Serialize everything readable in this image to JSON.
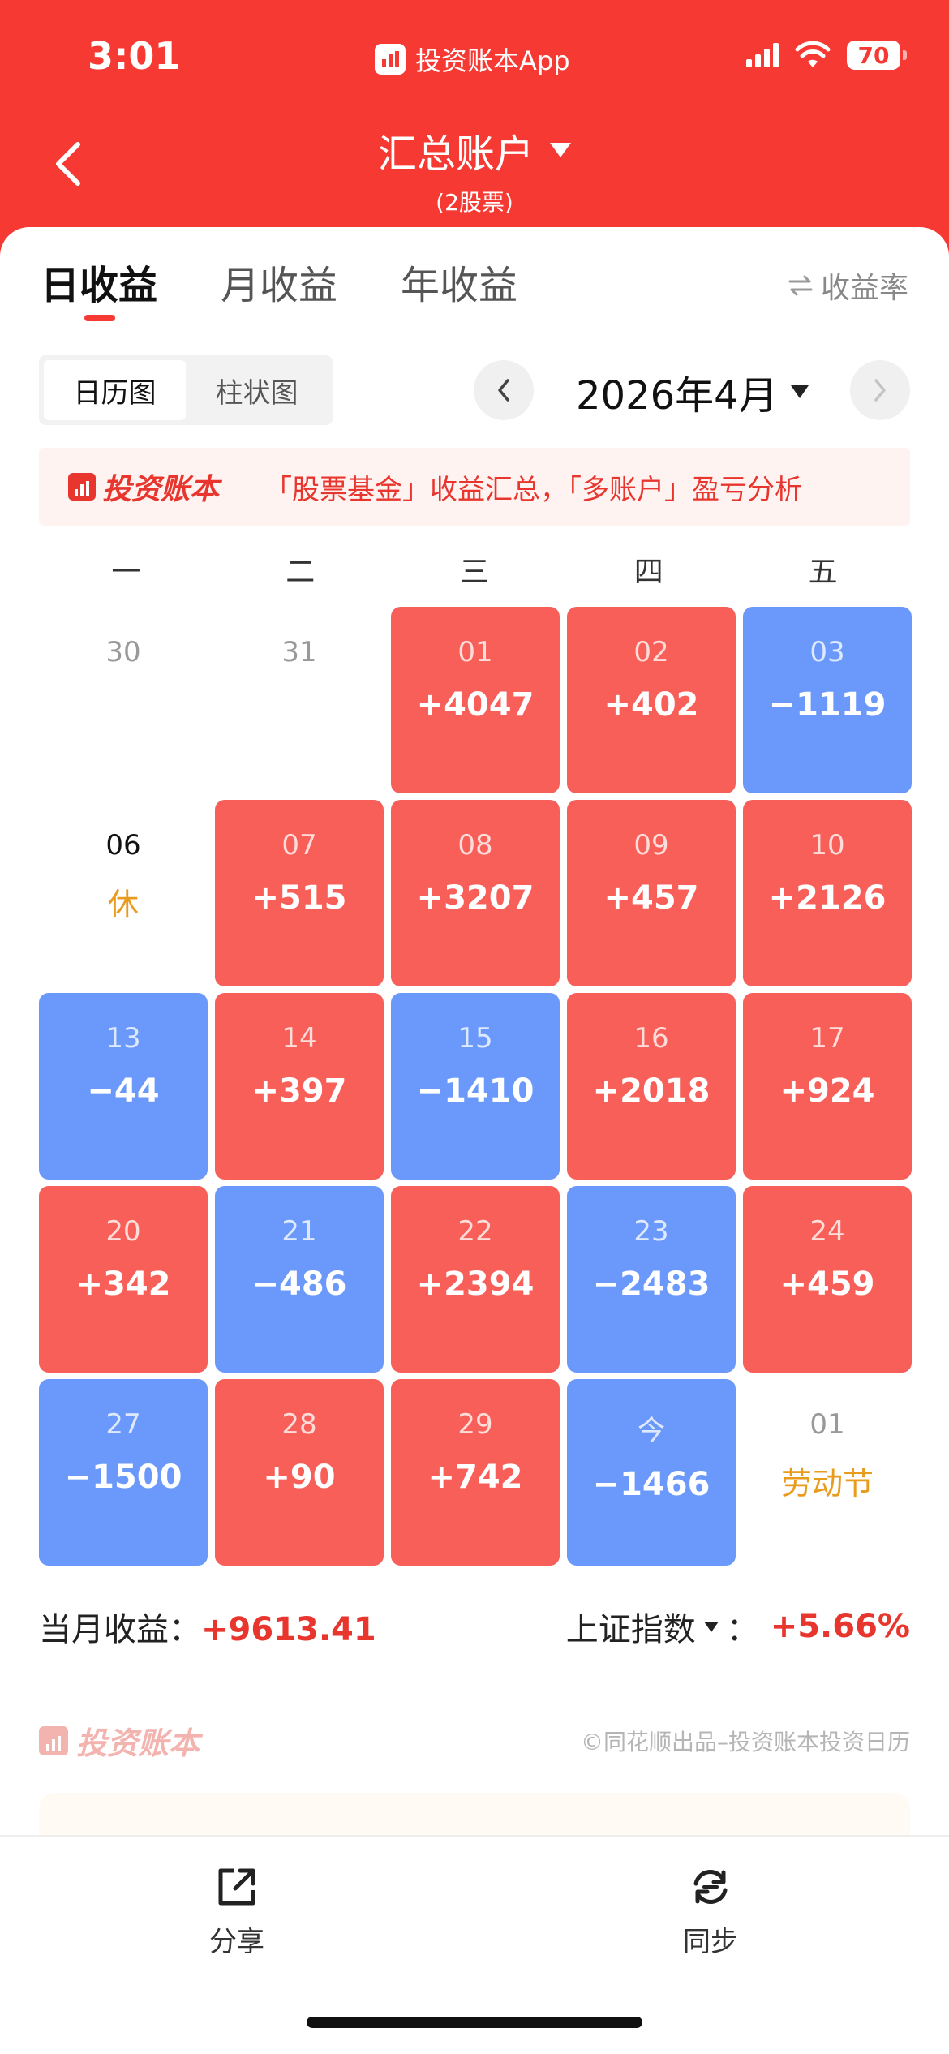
{
  "status_bar": {
    "time": "3:01",
    "app_name": "投资账本App",
    "battery": "70",
    "icons": [
      "signal-icon",
      "wifi-icon",
      "battery-icon"
    ]
  },
  "nav": {
    "title": "汇总账户",
    "subtitle": "(2股票)",
    "back_icon": "chevron-left-icon",
    "title_icon": "caret-down-icon"
  },
  "tabs": [
    {
      "label": "日收益",
      "active": true
    },
    {
      "label": "月收益",
      "active": false
    },
    {
      "label": "年收益",
      "active": false
    }
  ],
  "rate_toggle": {
    "label": "收益率",
    "icon": "swap-icon"
  },
  "view_switch": {
    "calendar": "日历图",
    "bar": "柱状图",
    "active": "calendar"
  },
  "month": {
    "label": "2026年4月",
    "prev_icon": "chevron-left-icon",
    "next_icon": "chevron-right-icon"
  },
  "banner": {
    "brand": "投资账本",
    "text": "「股票基金」收益汇总，「多账户」盈亏分析"
  },
  "weekdays": [
    "一",
    "二",
    "三",
    "四",
    "五"
  ],
  "calendar": [
    [
      {
        "day": "30",
        "value": "",
        "type": "plain"
      },
      {
        "day": "31",
        "value": "",
        "type": "plain"
      },
      {
        "day": "01",
        "value": "+4047",
        "type": "pos"
      },
      {
        "day": "02",
        "value": "+402",
        "type": "pos"
      },
      {
        "day": "03",
        "value": "−1119",
        "type": "neg"
      }
    ],
    [
      {
        "day": "06",
        "value": "",
        "note": "休",
        "type": "plain-current"
      },
      {
        "day": "07",
        "value": "+515",
        "type": "pos"
      },
      {
        "day": "08",
        "value": "+3207",
        "type": "pos"
      },
      {
        "day": "09",
        "value": "+457",
        "type": "pos"
      },
      {
        "day": "10",
        "value": "+2126",
        "type": "pos"
      }
    ],
    [
      {
        "day": "13",
        "value": "−44",
        "type": "neg"
      },
      {
        "day": "14",
        "value": "+397",
        "type": "pos"
      },
      {
        "day": "15",
        "value": "−1410",
        "type": "neg"
      },
      {
        "day": "16",
        "value": "+2018",
        "type": "pos"
      },
      {
        "day": "17",
        "value": "+924",
        "type": "pos"
      }
    ],
    [
      {
        "day": "20",
        "value": "+342",
        "type": "pos"
      },
      {
        "day": "21",
        "value": "−486",
        "type": "neg"
      },
      {
        "day": "22",
        "value": "+2394",
        "type": "pos"
      },
      {
        "day": "23",
        "value": "−2483",
        "type": "neg"
      },
      {
        "day": "24",
        "value": "+459",
        "type": "pos"
      }
    ],
    [
      {
        "day": "27",
        "value": "−1500",
        "type": "neg"
      },
      {
        "day": "28",
        "value": "+90",
        "type": "pos"
      },
      {
        "day": "29",
        "value": "+742",
        "type": "pos"
      },
      {
        "day": "今",
        "value": "−1466",
        "type": "neg"
      },
      {
        "day": "01",
        "value": "",
        "note": "劳动节",
        "type": "plain"
      }
    ]
  ],
  "summary": {
    "month_label": "当月收益：",
    "month_value": "+9613.41",
    "index_label": "上证指数",
    "index_sep": "：",
    "index_value": "+5.66%"
  },
  "footer": {
    "brand": "投资账本",
    "copyright": "©同花顺出品–投资账本投资日历"
  },
  "bottom_bar": {
    "share_label": "分享",
    "share_icon": "share-icon",
    "sync_label": "同步",
    "sync_icon": "sync-icon"
  },
  "colors": {
    "primary": "#f63a33",
    "gain": "#f75f58",
    "loss": "#6a99fb",
    "holiday": "#e89b1c"
  }
}
